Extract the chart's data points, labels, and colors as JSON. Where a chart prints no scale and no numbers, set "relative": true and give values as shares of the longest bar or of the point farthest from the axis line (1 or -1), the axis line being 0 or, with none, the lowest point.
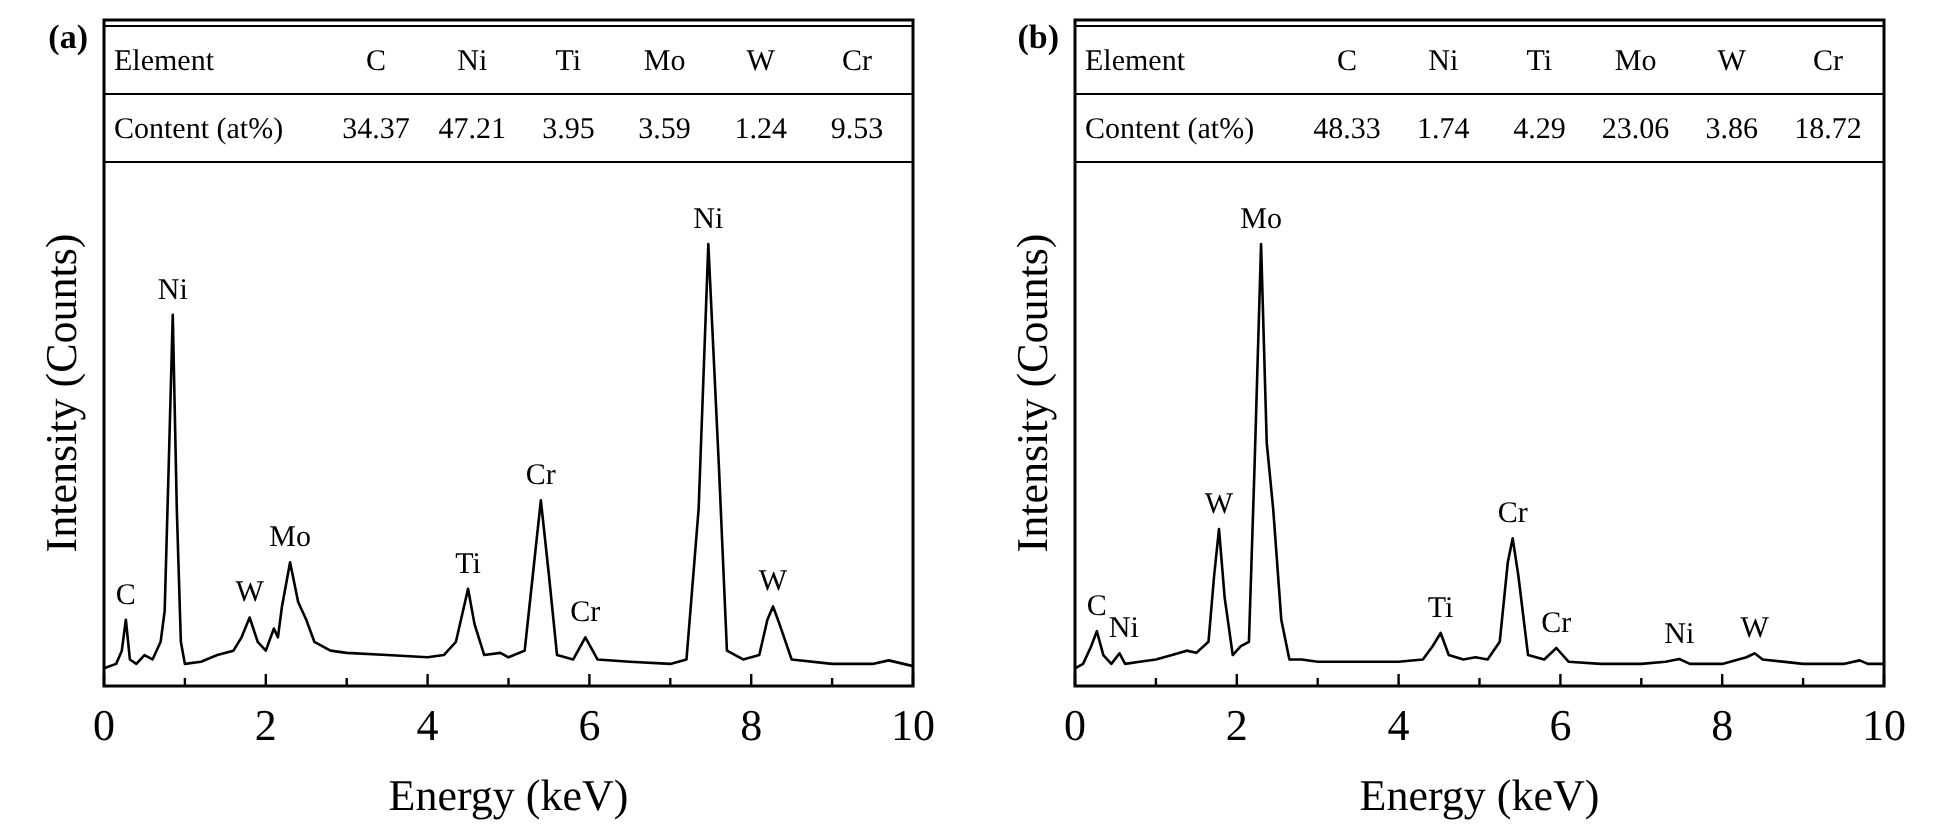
{
  "chart_data": [
    {
      "type": "line",
      "title": "(a)",
      "xlabel": "Energy (keV)",
      "ylabel": "Intensity (Counts)",
      "relative": true,
      "xlim": [
        0,
        10
      ],
      "xticks": [
        0,
        {
          "value": 1,
          "label": null
        },
        2,
        {
          "value": 3,
          "label": null
        },
        4,
        {
          "value": 5,
          "label": null
        },
        6,
        {
          "value": 7,
          "label": null
        },
        8,
        {
          "value": 9,
          "label": null
        },
        10
      ],
      "series": [
        {
          "color": "#000000",
          "x": [
            0.0,
            0.15,
            0.22,
            0.27,
            0.32,
            0.4,
            0.5,
            0.6,
            0.7,
            0.75,
            0.8,
            0.85,
            0.9,
            0.95,
            1.0,
            1.2,
            1.4,
            1.6,
            1.7,
            1.8,
            1.9,
            2.0,
            2.1,
            2.15,
            2.2,
            2.3,
            2.4,
            2.5,
            2.6,
            2.8,
            3.0,
            3.5,
            4.0,
            4.2,
            4.35,
            4.45,
            4.5,
            4.58,
            4.7,
            4.9,
            5.0,
            5.2,
            5.3,
            5.4,
            5.5,
            5.6,
            5.8,
            5.95,
            6.1,
            6.5,
            7.0,
            7.2,
            7.35,
            7.47,
            7.6,
            7.7,
            7.9,
            8.1,
            8.2,
            8.27,
            8.35,
            8.5,
            9.0,
            9.5,
            9.7,
            10
          ],
          "values": [
            0.04,
            0.05,
            0.08,
            0.15,
            0.06,
            0.05,
            0.07,
            0.06,
            0.1,
            0.17,
            0.5,
            0.84,
            0.4,
            0.1,
            0.05,
            0.055,
            0.07,
            0.08,
            0.11,
            0.155,
            0.1,
            0.08,
            0.13,
            0.11,
            0.18,
            0.28,
            0.19,
            0.15,
            0.1,
            0.08,
            0.075,
            0.07,
            0.065,
            0.07,
            0.1,
            0.18,
            0.22,
            0.14,
            0.07,
            0.075,
            0.065,
            0.08,
            0.25,
            0.42,
            0.25,
            0.07,
            0.06,
            0.11,
            0.06,
            0.055,
            0.05,
            0.06,
            0.4,
            1.0,
            0.5,
            0.08,
            0.06,
            0.07,
            0.15,
            0.18,
            0.14,
            0.06,
            0.05,
            0.05,
            0.058,
            0.045
          ]
        }
      ],
      "annotations": [
        "Element",
        "C",
        "Ni",
        "Ti",
        "Mo",
        "W",
        "Cr",
        "Content (at%)",
        "34.37",
        "47.21",
        "3.95",
        "3.59",
        "1.24",
        "9.53",
        {
          "text": "C",
          "x": 0.27,
          "y": 0.15
        },
        {
          "text": "Ni",
          "x": 0.85,
          "y": 0.84
        },
        {
          "text": "W",
          "x": 1.8,
          "y": 0.155
        },
        {
          "text": "Mo",
          "x": 2.3,
          "y": 0.28
        },
        {
          "text": "Ti",
          "x": 4.5,
          "y": 0.22
        },
        {
          "text": "Cr",
          "x": 5.4,
          "y": 0.42
        },
        {
          "text": "Cr",
          "x": 5.95,
          "y": 0.11
        },
        {
          "text": "Ni",
          "x": 7.47,
          "y": 1.0
        },
        {
          "text": "W",
          "x": 8.27,
          "y": 0.18
        }
      ]
    },
    {
      "type": "line",
      "title": "(b)",
      "xlabel": "Energy (keV)",
      "ylabel": "Intensity (Counts)",
      "relative": true,
      "xlim": [
        0,
        10
      ],
      "xticks": [
        0,
        {
          "value": 1,
          "label": null
        },
        2,
        {
          "value": 3,
          "label": null
        },
        4,
        {
          "value": 5,
          "label": null
        },
        6,
        {
          "value": 7,
          "label": null
        },
        8,
        {
          "value": 9,
          "label": null
        },
        10
      ],
      "series": [
        {
          "color": "#000000",
          "x": [
            0,
            0.1,
            0.2,
            0.27,
            0.35,
            0.45,
            0.55,
            0.62,
            0.8,
            1.0,
            1.2,
            1.38,
            1.5,
            1.65,
            1.72,
            1.78,
            1.85,
            1.95,
            2.05,
            2.15,
            2.22,
            2.3,
            2.37,
            2.45,
            2.55,
            2.65,
            2.8,
            3.0,
            3.5,
            4.0,
            4.3,
            4.42,
            4.52,
            4.62,
            4.8,
            4.95,
            5.1,
            5.25,
            5.35,
            5.41,
            5.48,
            5.6,
            5.8,
            5.95,
            6.1,
            6.5,
            7.0,
            7.3,
            7.47,
            7.6,
            8.0,
            8.3,
            8.4,
            8.5,
            9.0,
            9.5,
            9.7,
            9.8,
            10
          ],
          "values": [
            0.04,
            0.05,
            0.09,
            0.124,
            0.07,
            0.05,
            0.074,
            0.05,
            0.055,
            0.06,
            0.07,
            0.08,
            0.075,
            0.1,
            0.25,
            0.355,
            0.2,
            0.07,
            0.09,
            0.1,
            0.5,
            1.0,
            0.55,
            0.4,
            0.15,
            0.06,
            0.06,
            0.055,
            0.055,
            0.055,
            0.06,
            0.09,
            0.12,
            0.07,
            0.06,
            0.065,
            0.06,
            0.1,
            0.28,
            0.334,
            0.25,
            0.07,
            0.06,
            0.086,
            0.055,
            0.05,
            0.05,
            0.055,
            0.061,
            0.05,
            0.05,
            0.065,
            0.074,
            0.06,
            0.05,
            0.05,
            0.058,
            0.05,
            0.05
          ]
        }
      ],
      "annotations": [
        "Element",
        "C",
        "Ni",
        "Ti",
        "Mo",
        "W",
        "Cr",
        "Content (at%)",
        "48.33",
        "1.74",
        "4.29",
        "23.06",
        "3.86",
        "18.72",
        {
          "text": "C",
          "x": 0.27,
          "y": 0.124
        },
        {
          "text": "Ni",
          "x": 0.55,
          "y": 0.074
        },
        {
          "text": "W",
          "x": 1.78,
          "y": 0.355
        },
        {
          "text": "Mo",
          "x": 2.3,
          "y": 1.0
        },
        {
          "text": "Ti",
          "x": 4.52,
          "y": 0.12
        },
        {
          "text": "Cr",
          "x": 5.41,
          "y": 0.334
        },
        {
          "text": "Cr",
          "x": 5.95,
          "y": 0.086
        },
        {
          "text": "Ni",
          "x": 7.47,
          "y": 0.061
        },
        {
          "text": "W",
          "x": 8.4,
          "y": 0.074
        }
      ]
    }
  ]
}
